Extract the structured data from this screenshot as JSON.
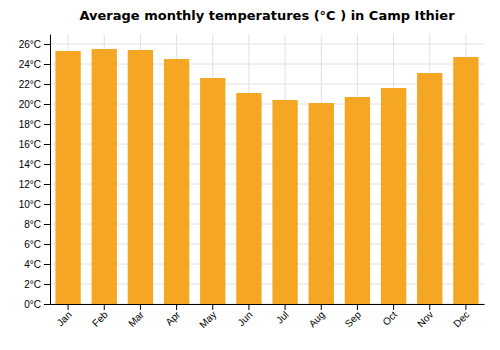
{
  "chart_data": {
    "type": "bar",
    "title": "Average monthly temperatures (°C ) in Camp Ithier",
    "categories": [
      "Jan",
      "Feb",
      "Mar",
      "Apr",
      "May",
      "Jun",
      "Jul",
      "Aug",
      "Sep",
      "Oct",
      "Nov",
      "Dec"
    ],
    "values": [
      25.3,
      25.5,
      25.4,
      24.5,
      22.6,
      21.1,
      20.4,
      20.1,
      20.7,
      21.6,
      23.1,
      24.7
    ],
    "color": "#F5A623",
    "ylim": [
      0,
      27
    ],
    "yticks": [
      {
        "value": 0,
        "label": "0°C"
      },
      {
        "value": 2,
        "label": "2°C"
      },
      {
        "value": 4,
        "label": "4°C"
      },
      {
        "value": 6,
        "label": "6°C"
      },
      {
        "value": 8,
        "label": "8°C"
      },
      {
        "value": 10,
        "label": "10°C"
      },
      {
        "value": 12,
        "label": "12°C"
      },
      {
        "value": 14,
        "label": "14°C"
      },
      {
        "value": 16,
        "label": "16°C"
      },
      {
        "value": 18,
        "label": "18°C"
      },
      {
        "value": 20,
        "label": "20°C"
      },
      {
        "value": 22,
        "label": "22°C"
      },
      {
        "value": 24,
        "label": "24°C"
      },
      {
        "value": 26,
        "label": "26°C"
      }
    ],
    "grid": true
  }
}
